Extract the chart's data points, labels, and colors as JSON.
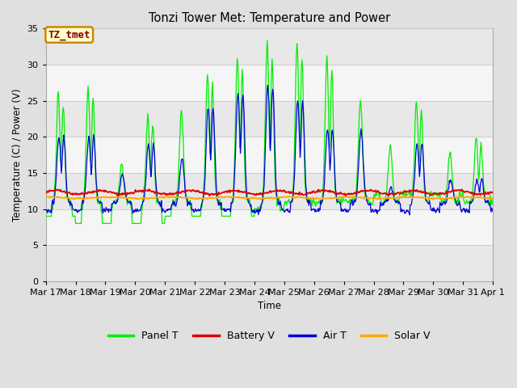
{
  "title": "Tonzi Tower Met: Temperature and Power",
  "ylabel": "Temperature (C) / Power (V)",
  "xlabel": "Time",
  "ylim": [
    0,
    35
  ],
  "yticks": [
    0,
    5,
    10,
    15,
    20,
    25,
    30,
    35
  ],
  "legend_label": "TZ_tmet",
  "series": {
    "Panel T": {
      "color": "#00ee00"
    },
    "Battery V": {
      "color": "#dd0000"
    },
    "Air T": {
      "color": "#0000dd"
    },
    "Solar V": {
      "color": "#ffaa00"
    }
  },
  "bg_color": "#e0e0e0",
  "plot_bg_color": "#f5f5f5",
  "grid_color": "#d8d8d8",
  "date_labels": [
    "Mar 17",
    "Mar 18",
    "Mar 19",
    "Mar 20",
    "Mar 21",
    "Mar 22",
    "Mar 23",
    "Mar 24",
    "Mar 25",
    "Mar 26",
    "Mar 27",
    "Mar 28",
    "Mar 29",
    "Mar 30",
    "Mar 31",
    "Apr 1"
  ],
  "figsize": [
    6.4,
    4.8
  ],
  "dpi": 100
}
